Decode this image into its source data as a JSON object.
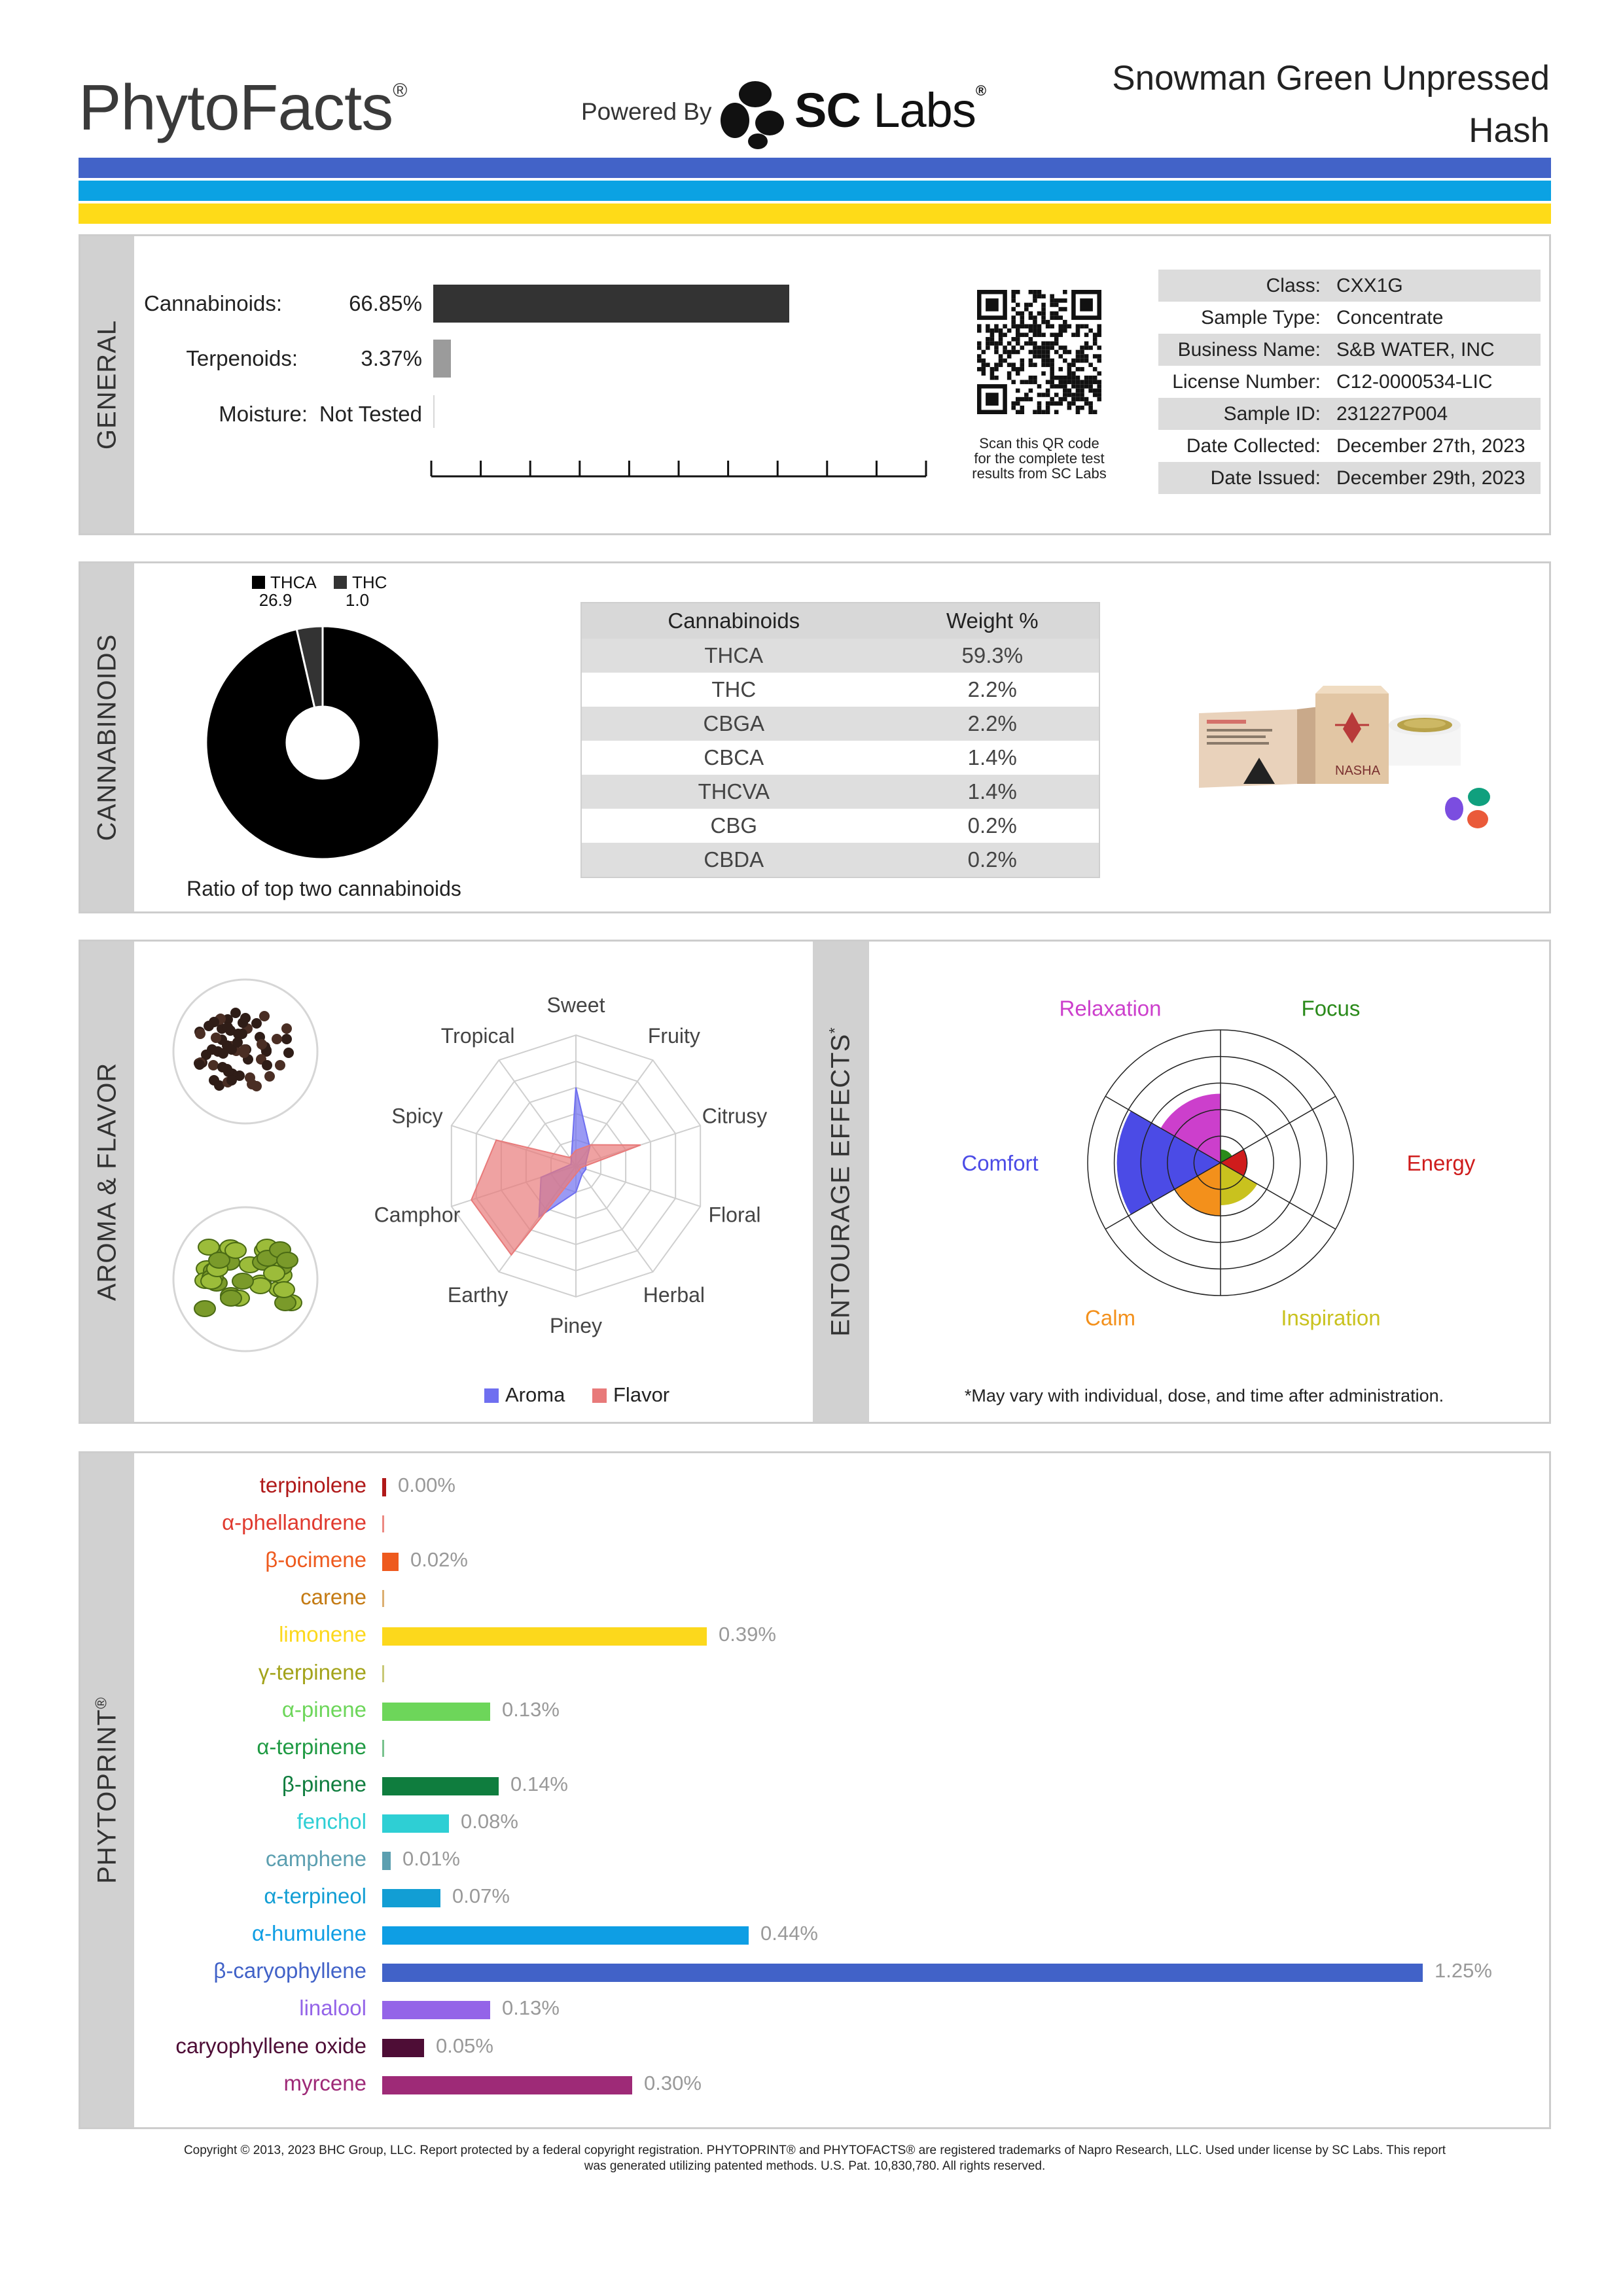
{
  "header": {
    "brand": "PhytoFacts",
    "brand_mark": "®",
    "powered_by": "Powered By",
    "lab_name_bold": "SC",
    "lab_name_rest": " Labs",
    "lab_mark": "®",
    "product_line1": "Snowman Green Unpressed",
    "product_line2": "Hash",
    "stripe_colors": [
      "#4263c8",
      "#0ba2e3",
      "#fedb18"
    ]
  },
  "general": {
    "section_label": "GENERAL",
    "rows": [
      {
        "label": "Cannabinoids:",
        "value": "66.85%",
        "fraction": 0.6685,
        "color": "#333333"
      },
      {
        "label": "Terpenoids:",
        "value": "3.37%",
        "fraction": 0.0337,
        "color": "#9b9b9b"
      },
      {
        "label": "Moisture:",
        "value": "Not Tested",
        "fraction": 0,
        "color": "#9b9b9b"
      }
    ],
    "qr_caption_1": "Scan this QR code",
    "qr_caption_2": "for the complete test",
    "qr_caption_3": "results from SC Labs",
    "info": [
      {
        "key": "Class:",
        "value": "CXX1G"
      },
      {
        "key": "Sample Type:",
        "value": "Concentrate"
      },
      {
        "key": "Business Name:",
        "value": "S&B WATER, INC"
      },
      {
        "key": "License Number:",
        "value": "C12-0000534-LIC"
      },
      {
        "key": "Sample ID:",
        "value": "231227P004"
      },
      {
        "key": "Date Collected:",
        "value": "December 27th, 2023"
      },
      {
        "key": "Date Issued:",
        "value": "December 29th, 2023"
      }
    ]
  },
  "cannabinoids": {
    "section_label": "CANNABINOIDS",
    "ratio_caption": "Ratio of top two cannabinoids",
    "table_header_name": "Cannabinoids",
    "table_header_weight": "Weight %",
    "rows": [
      {
        "name": "THCA",
        "weight": "59.3%"
      },
      {
        "name": "THC",
        "weight": "2.2%"
      },
      {
        "name": "CBGA",
        "weight": "2.2%"
      },
      {
        "name": "CBCA",
        "weight": "1.4%"
      },
      {
        "name": "THCVA",
        "weight": "1.4%"
      },
      {
        "name": "CBG",
        "weight": "0.2%"
      },
      {
        "name": "CBDA",
        "weight": "0.2%"
      }
    ],
    "package_brand": "NASHA"
  },
  "chart_data": [
    {
      "type": "pie",
      "title": "",
      "labels": [
        "THCA",
        "THC"
      ],
      "value_labels": [
        "26.9",
        "1.0"
      ],
      "values": [
        26.9,
        1.0
      ],
      "colors": [
        "#000000",
        "#333333"
      ],
      "legend": "top",
      "donut": true
    },
    {
      "type": "radar",
      "axes": [
        "Sweet",
        "Fruity",
        "Citrusy",
        "Floral",
        "Herbal",
        "Piney",
        "Earthy",
        "Camphor",
        "Spicy",
        "Tropical"
      ],
      "range": [
        0,
        5
      ],
      "legend": "bottom",
      "series": [
        {
          "name": "Aroma",
          "color": "#6f6ff0",
          "values": [
            3.0,
            0.9,
            0.4,
            0.4,
            0.4,
            1.0,
            2.4,
            1.4,
            0.2,
            0.3
          ]
        },
        {
          "name": "Flavor",
          "color": "#e87a7a",
          "values": [
            0.6,
            1.0,
            2.6,
            0.2,
            0.2,
            0.3,
            4.2,
            4.2,
            3.2,
            0.4
          ]
        }
      ]
    },
    {
      "type": "polar-area",
      "note": "*May vary with individual, dose, and time after administration.",
      "axes": [
        "Focus",
        "Energy",
        "Inspiration",
        "Calm",
        "Comfort",
        "Relaxation"
      ],
      "range": [
        0,
        5
      ],
      "values": [
        0.5,
        1.0,
        1.6,
        2.0,
        3.9,
        2.6
      ],
      "colors": [
        "#2a8a1a",
        "#cf1c1c",
        "#c9c21e",
        "#f3901b",
        "#4b4be6",
        "#cc3fcc"
      ]
    },
    {
      "type": "bar",
      "orientation": "horizontal",
      "unit": "%",
      "max": 1.25,
      "categories": [
        "terpinolene",
        "α-phellandrene",
        "β-ocimene",
        "carene",
        "limonene",
        "γ-terpinene",
        "α-pinene",
        "α-terpinene",
        "β-pinene",
        "fenchol",
        "camphene",
        "α-terpineol",
        "α-humulene",
        "β-caryophyllene",
        "linalool",
        "caryophyllene oxide",
        "myrcene"
      ],
      "values": [
        0.0,
        null,
        0.02,
        null,
        0.39,
        null,
        0.13,
        null,
        0.14,
        0.08,
        0.01,
        0.07,
        0.44,
        1.25,
        0.13,
        0.05,
        0.3
      ],
      "value_labels": [
        "0.00%",
        "",
        "0.02%",
        "",
        "0.39%",
        "",
        "0.13%",
        "",
        "0.14%",
        "0.08%",
        "0.01%",
        "0.07%",
        "0.44%",
        "1.25%",
        "0.13%",
        "0.05%",
        "0.30%"
      ],
      "colors": [
        "#b01919",
        "#e03a2f",
        "#ee5a1e",
        "#c47a12",
        "#fcd81c",
        "#a3a31a",
        "#6dd65a",
        "#1f9a43",
        "#0f7d3e",
        "#2ecfd4",
        "#5c9fb0",
        "#129ed4",
        "#0e9ee4",
        "#4162c8",
        "#9464e8",
        "#4e0d36",
        "#9e2a77"
      ]
    }
  ],
  "aroma": {
    "section_label": "AROMA & FLAVOR",
    "image_1": "peppercorns",
    "image_2": "hops"
  },
  "entourage": {
    "section_label": "ENTOURAGE EFFECTS",
    "mark": "*"
  },
  "phytoprint": {
    "section_label": "PHYTOPRINT",
    "mark": "®"
  },
  "footer": {
    "copyright_1": "Copyright © 2013, 2023 BHC Group, LLC. Report protected by a federal copyright registration. PHYTOPRINT® and PHYTOFACTS® are registered trademarks of Napro Research, LLC. Used under license by SC Labs. This report",
    "copyright_2": "was generated utilizing patented methods. U.S. Pat. 10,830,780. All rights reserved."
  }
}
